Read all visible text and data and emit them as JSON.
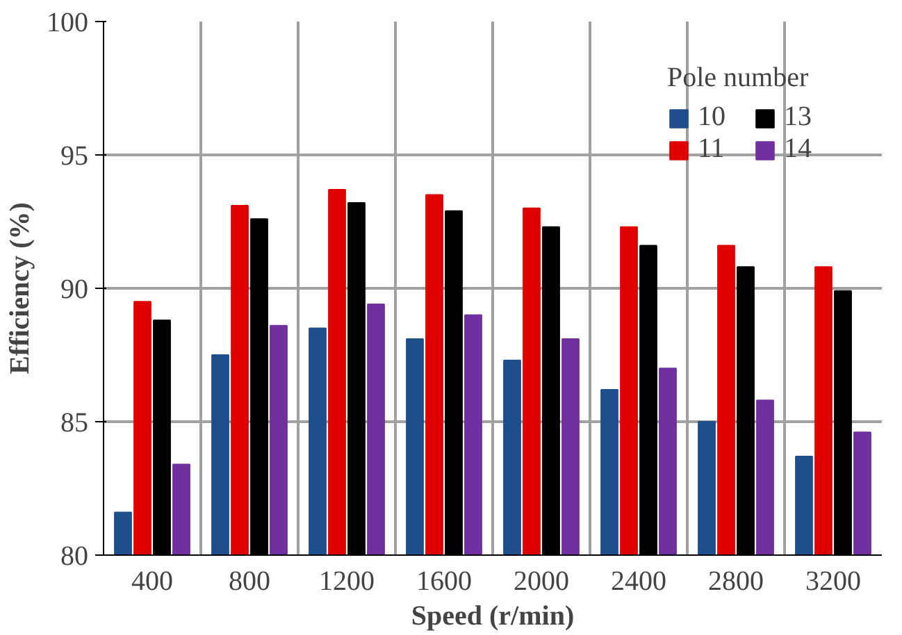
{
  "chart_data": {
    "type": "bar",
    "xlabel": "Speed (r/min)",
    "ylabel": "Efficiency (%)",
    "legend_title": "Pole number",
    "categories": [
      "400",
      "800",
      "1200",
      "1600",
      "2000",
      "2400",
      "2800",
      "3200"
    ],
    "series": [
      {
        "name": "10",
        "color": "#1f4e8c",
        "values": [
          81.6,
          87.5,
          88.5,
          88.1,
          87.3,
          86.2,
          85.0,
          83.7
        ]
      },
      {
        "name": "11",
        "color": "#e00000",
        "values": [
          89.5,
          93.1,
          93.7,
          93.5,
          93.0,
          92.3,
          91.6,
          90.8
        ]
      },
      {
        "name": "13",
        "color": "#000000",
        "values": [
          88.8,
          92.6,
          93.2,
          92.9,
          92.3,
          91.6,
          90.8,
          89.9
        ]
      },
      {
        "name": "14",
        "color": "#7030a0",
        "values": [
          83.4,
          88.6,
          89.4,
          89.0,
          88.1,
          87.0,
          85.8,
          84.6
        ]
      }
    ],
    "ylim": [
      80,
      100
    ],
    "yticks": [
      80,
      85,
      90,
      95,
      100
    ],
    "grid": true,
    "legend": "top right"
  }
}
